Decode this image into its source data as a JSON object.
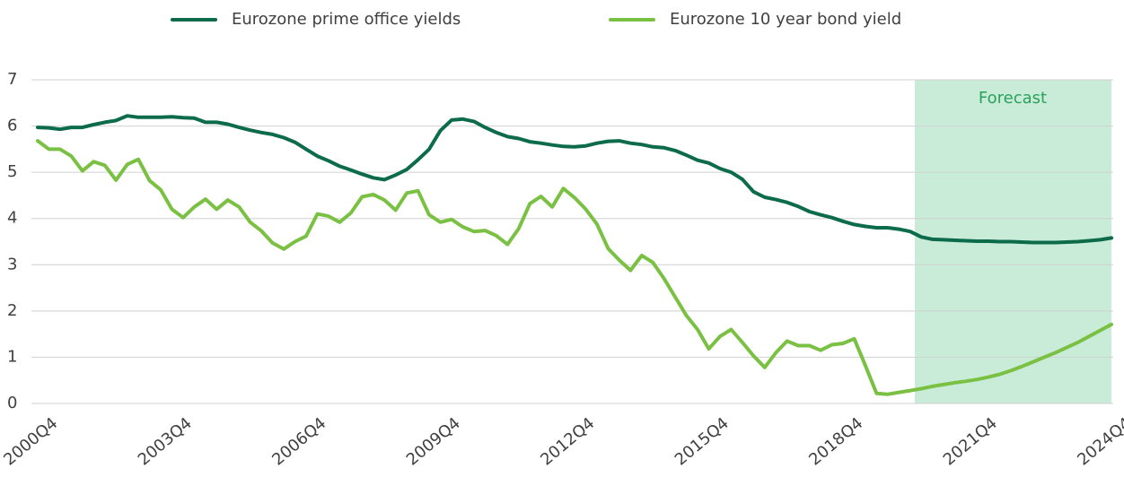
{
  "chart_data": {
    "type": "line",
    "categories": [
      "2000Q4",
      null,
      null,
      null,
      null,
      null,
      null,
      null,
      null,
      null,
      null,
      null,
      "2003Q4",
      null,
      null,
      null,
      null,
      null,
      null,
      null,
      null,
      null,
      null,
      null,
      "2006Q4",
      null,
      null,
      null,
      null,
      null,
      null,
      null,
      null,
      null,
      null,
      null,
      "2009Q4",
      null,
      null,
      null,
      null,
      null,
      null,
      null,
      null,
      null,
      null,
      null,
      "2012Q4",
      null,
      null,
      null,
      null,
      null,
      null,
      null,
      null,
      null,
      null,
      null,
      "2015Q4",
      null,
      null,
      null,
      null,
      null,
      null,
      null,
      null,
      null,
      null,
      null,
      "2018Q4",
      null,
      null,
      null,
      null,
      null,
      null,
      null,
      null,
      null,
      null,
      null,
      "2021Q4",
      null,
      null,
      null,
      null,
      null,
      null,
      null,
      null,
      null,
      null,
      null,
      "2024Q4"
    ],
    "series": [
      {
        "name": "Eurozone prime office yields",
        "color": "#0b6b4a",
        "values": [
          5.97,
          5.96,
          5.93,
          5.97,
          5.97,
          6.03,
          6.08,
          6.12,
          6.22,
          6.19,
          6.19,
          6.19,
          6.2,
          6.18,
          6.17,
          6.08,
          6.08,
          6.04,
          5.97,
          5.91,
          5.86,
          5.82,
          5.75,
          5.65,
          5.5,
          5.35,
          5.25,
          5.13,
          5.05,
          4.96,
          4.88,
          4.84,
          4.94,
          5.06,
          5.27,
          5.5,
          5.9,
          6.13,
          6.15,
          6.1,
          5.97,
          5.86,
          5.77,
          5.73,
          5.66,
          5.63,
          5.59,
          5.56,
          5.55,
          5.57,
          5.63,
          5.67,
          5.68,
          5.63,
          5.6,
          5.55,
          5.53,
          5.47,
          5.37,
          5.26,
          5.2,
          5.08,
          5.0,
          4.85,
          4.58,
          4.46,
          4.41,
          4.35,
          4.26,
          4.15,
          4.08,
          4.02,
          3.94,
          3.87,
          3.83,
          3.8,
          3.8,
          3.77,
          3.72,
          3.6,
          3.55,
          3.54,
          3.53,
          3.52,
          3.51,
          3.51,
          3.5,
          3.5,
          3.49,
          3.48,
          3.48,
          3.48,
          3.49,
          3.5,
          3.52,
          3.54,
          3.58
        ]
      },
      {
        "name": "Eurozone 10 year bond yield",
        "color": "#7ac143",
        "values": [
          5.68,
          5.5,
          5.5,
          5.35,
          5.03,
          5.23,
          5.15,
          4.83,
          5.17,
          5.28,
          4.82,
          4.62,
          4.2,
          4.02,
          4.25,
          4.42,
          4.2,
          4.4,
          4.25,
          3.92,
          3.73,
          3.47,
          3.34,
          3.5,
          3.62,
          4.1,
          4.05,
          3.92,
          4.12,
          4.47,
          4.52,
          4.4,
          4.18,
          4.55,
          4.6,
          4.08,
          3.92,
          3.98,
          3.82,
          3.72,
          3.74,
          3.63,
          3.44,
          3.78,
          4.32,
          4.48,
          4.25,
          4.65,
          4.45,
          4.2,
          3.88,
          3.35,
          3.1,
          2.88,
          3.2,
          3.05,
          2.7,
          2.3,
          1.9,
          1.6,
          1.18,
          1.45,
          1.6,
          1.32,
          1.03,
          0.78,
          1.1,
          1.35,
          1.25,
          1.25,
          1.15,
          1.27,
          1.3,
          1.4,
          0.82,
          0.22,
          0.2,
          0.24,
          0.28,
          0.32,
          0.37,
          0.41,
          0.45,
          0.48,
          0.52,
          0.57,
          0.63,
          0.71,
          0.8,
          0.9,
          1.0,
          1.1,
          1.21,
          1.32,
          1.45,
          1.58,
          1.71
        ]
      }
    ],
    "annotation": "Forecast",
    "ylim": [
      0,
      7
    ],
    "yticks": [
      0,
      1,
      2,
      3,
      4,
      5,
      6,
      7
    ],
    "grid": true,
    "legend": "top"
  }
}
